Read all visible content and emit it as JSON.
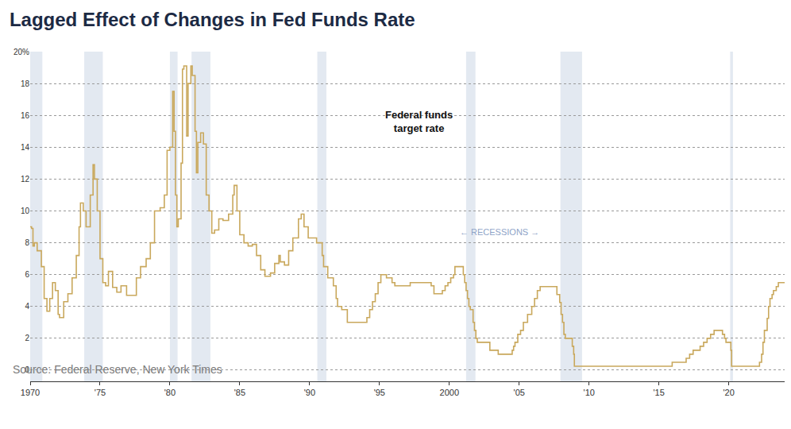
{
  "chart_data": {
    "type": "line",
    "title": "Lagged Effect of Changes in Fed Funds Rate",
    "annotations": {
      "series_label": [
        "Federal funds",
        "target rate"
      ],
      "recessions_label": "← RECESSIONS →",
      "source": "Source: Federal Reserve, New York Times"
    },
    "color": "#c9a85c",
    "line_style": "step",
    "grid": true,
    "recessions": [
      [
        1969.95,
        1970.87
      ],
      [
        1973.87,
        1975.2
      ],
      [
        1980.0,
        1980.55
      ],
      [
        1981.55,
        1982.9
      ],
      [
        1990.55,
        1991.2
      ],
      [
        2001.2,
        2001.87
      ],
      [
        2007.95,
        2009.5
      ],
      [
        2020.1,
        2020.3
      ]
    ],
    "recession_color": "#e3e9f1",
    "x": [
      1970.0,
      1970.1,
      1970.2,
      1970.3,
      1970.5,
      1970.8,
      1971.0,
      1971.2,
      1971.4,
      1971.6,
      1971.8,
      1972.0,
      1972.1,
      1972.4,
      1972.7,
      1973.0,
      1973.3,
      1973.5,
      1973.6,
      1973.8,
      1974.0,
      1974.3,
      1974.5,
      1974.6,
      1974.8,
      1975.0,
      1975.2,
      1975.4,
      1975.6,
      1975.9,
      1976.2,
      1976.5,
      1976.9,
      1977.3,
      1977.6,
      1977.9,
      1978.3,
      1978.6,
      1978.9,
      1979.3,
      1979.6,
      1979.8,
      1980.0,
      1980.2,
      1980.3,
      1980.4,
      1980.5,
      1980.6,
      1980.8,
      1980.9,
      1981.0,
      1981.2,
      1981.3,
      1981.5,
      1981.6,
      1981.8,
      1981.9,
      1982.0,
      1982.2,
      1982.4,
      1982.6,
      1982.8,
      1983.0,
      1983.2,
      1983.5,
      1983.8,
      1984.2,
      1984.5,
      1984.6,
      1984.8,
      1985.0,
      1985.3,
      1985.6,
      1985.9,
      1986.2,
      1986.5,
      1986.8,
      1987.2,
      1987.5,
      1987.8,
      1987.9,
      1988.2,
      1988.5,
      1988.8,
      1989.2,
      1989.4,
      1989.6,
      1989.9,
      1990.5,
      1990.9,
      1991.0,
      1991.3,
      1991.7,
      1991.9,
      1992.0,
      1992.3,
      1992.7,
      1994.1,
      1994.3,
      1994.5,
      1994.7,
      1994.9,
      1995.1,
      1995.5,
      1995.9,
      1996.1,
      1997.2,
      1998.7,
      1998.9,
      1999.5,
      1999.7,
      1999.9,
      2000.1,
      2000.3,
      2000.4,
      2001.0,
      2001.1,
      2001.2,
      2001.3,
      2001.4,
      2001.5,
      2001.7,
      2001.8,
      2001.9,
      2002.0,
      2002.9,
      2003.5,
      2004.5,
      2004.6,
      2004.7,
      2004.9,
      2005.1,
      2005.3,
      2005.6,
      2005.9,
      2006.1,
      2006.3,
      2006.5,
      2007.7,
      2007.9,
      2008.0,
      2008.1,
      2008.2,
      2008.3,
      2008.8,
      2008.9,
      2008.95,
      2015.95,
      2016.95,
      2017.2,
      2017.45,
      2017.95,
      2018.2,
      2018.45,
      2018.7,
      2018.95,
      2019.55,
      2019.7,
      2019.8,
      2020.15,
      2020.2,
      2022.2,
      2022.35,
      2022.45,
      2022.55,
      2022.75,
      2022.85,
      2022.95,
      2023.1,
      2023.2,
      2023.4,
      2023.55,
      2024.0
    ],
    "values": [
      9.0,
      8.9,
      7.8,
      8.0,
      7.5,
      6.5,
      4.5,
      3.7,
      4.5,
      5.5,
      5.0,
      3.5,
      3.3,
      4.3,
      4.8,
      5.8,
      7.2,
      9.0,
      10.5,
      10.0,
      9.0,
      11.0,
      12.9,
      12.0,
      10.0,
      7.0,
      5.5,
      5.3,
      6.2,
      5.2,
      4.9,
      5.3,
      4.7,
      4.7,
      5.8,
      6.5,
      7.0,
      8.0,
      10.0,
      10.2,
      11.0,
      13.8,
      14.0,
      17.5,
      15.0,
      11.0,
      9.0,
      9.5,
      13.0,
      18.9,
      19.1,
      14.7,
      18.0,
      19.1,
      18.5,
      15.0,
      12.4,
      14.3,
      14.9,
      14.2,
      11.0,
      10.0,
      8.6,
      8.8,
      9.5,
      9.4,
      9.8,
      11.0,
      11.6,
      10.0,
      8.5,
      8.0,
      7.8,
      7.9,
      7.2,
      6.3,
      5.9,
      6.1,
      6.7,
      7.2,
      6.8,
      6.6,
      7.5,
      8.3,
      9.5,
      9.8,
      9.0,
      8.3,
      8.0,
      7.2,
      6.5,
      5.8,
      5.3,
      4.5,
      4.0,
      3.8,
      3.0,
      3.3,
      3.8,
      4.3,
      4.8,
      5.5,
      6.0,
      5.8,
      5.5,
      5.3,
      5.5,
      5.3,
      4.8,
      5.0,
      5.3,
      5.5,
      5.8,
      6.0,
      6.5,
      6.0,
      5.5,
      5.0,
      4.5,
      4.0,
      3.8,
      3.0,
      2.5,
      2.0,
      1.75,
      1.25,
      1.0,
      1.25,
      1.5,
      1.75,
      2.25,
      2.5,
      3.0,
      3.5,
      4.0,
      4.5,
      5.0,
      5.25,
      4.75,
      4.25,
      3.5,
      3.0,
      2.25,
      2.0,
      1.5,
      1.0,
      0.25,
      0.5,
      0.75,
      1.0,
      1.25,
      1.5,
      1.75,
      2.0,
      2.25,
      2.5,
      2.25,
      2.0,
      1.75,
      1.25,
      0.25,
      0.5,
      1.0,
      1.75,
      2.5,
      3.25,
      4.0,
      4.5,
      4.75,
      5.0,
      5.25,
      5.5,
      5.5
    ],
    "xlim": [
      1970,
      2024
    ],
    "xticks": [
      1970,
      {
        "value": 1975,
        "label": "'75"
      },
      {
        "value": 1980,
        "label": "'80"
      },
      {
        "value": 1985,
        "label": "'85"
      },
      {
        "value": 1990,
        "label": "'90"
      },
      {
        "value": 1995,
        "label": "'95"
      },
      2000,
      {
        "value": 2005,
        "label": "'05"
      },
      {
        "value": 2010,
        "label": "'10"
      },
      {
        "value": 2015,
        "label": "'15"
      },
      {
        "value": 2020,
        "label": "'20"
      }
    ],
    "ylim": [
      -0.7,
      20
    ],
    "yticks": [
      0,
      2,
      4,
      6,
      8,
      10,
      12,
      14,
      16,
      18,
      {
        "value": 20,
        "label": "20%"
      }
    ]
  }
}
